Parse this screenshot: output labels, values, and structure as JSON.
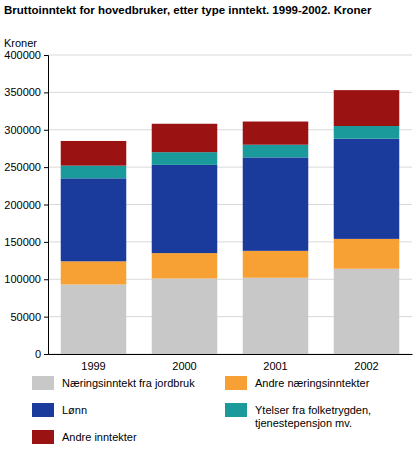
{
  "chart_data": {
    "type": "bar",
    "stacked": true,
    "title": "Bruttoinntekt for hovedbruker, etter type inntekt. 1999-2002. Kroner",
    "y_label": "Kroner",
    "categories": [
      "1999",
      "2000",
      "2001",
      "2002"
    ],
    "series": [
      {
        "name": "Næringsinntekt fra jordbruk",
        "color": "#c8c8c8",
        "values": [
          93000,
          101000,
          102000,
          114000
        ]
      },
      {
        "name": "Andre næringsinntekter",
        "color": "#f7a034",
        "values": [
          31000,
          34000,
          36000,
          40000
        ]
      },
      {
        "name": "Lønn",
        "color": "#1a3a9c",
        "values": [
          111000,
          118000,
          125000,
          134000
        ]
      },
      {
        "name": "Ytelser fra folketrygden, tjenestepensjon mv.",
        "color": "#1a9a9a",
        "values": [
          17000,
          17000,
          17000,
          17000
        ]
      },
      {
        "name": "Andre inntekter",
        "color": "#9b1212",
        "values": [
          33000,
          38000,
          31000,
          48000
        ]
      }
    ],
    "ylim": [
      0,
      400000
    ],
    "yticks": [
      0,
      50000,
      100000,
      150000,
      200000,
      250000,
      300000,
      350000,
      400000
    ],
    "grid": true,
    "legend": "bottom"
  }
}
